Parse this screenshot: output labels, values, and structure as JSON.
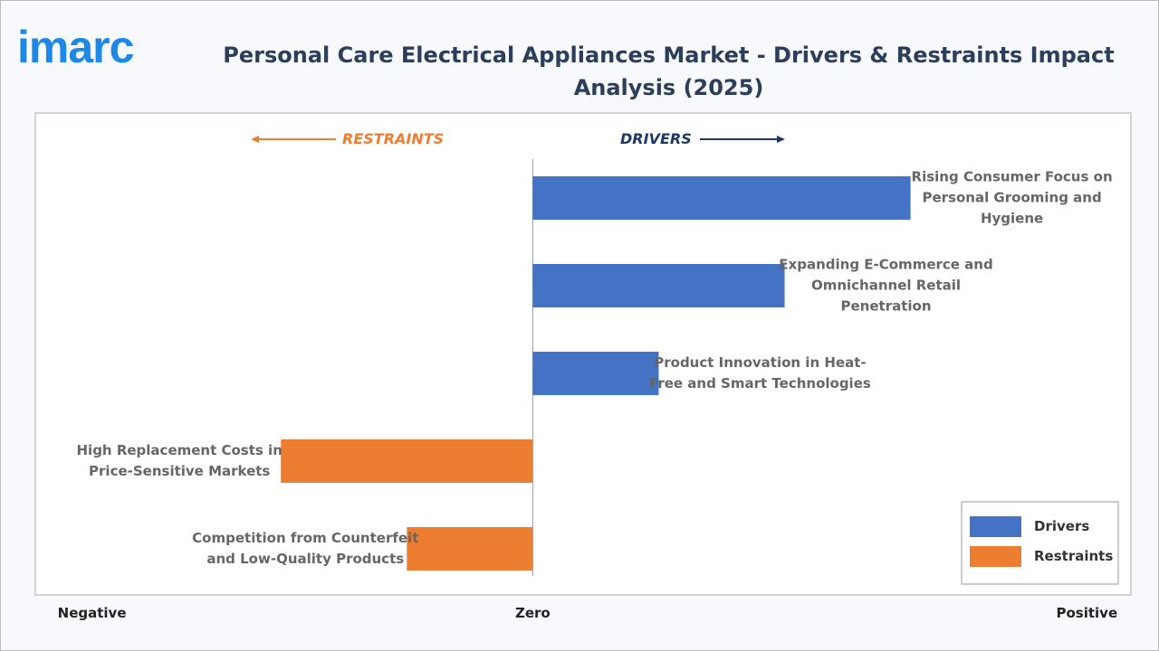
{
  "logo": "imarc",
  "chart_data": {
    "type": "diverging-bar",
    "title": "Personal Care Electrical Appliances Market - Drivers & Restraints Impact Analysis (2025)",
    "annotations": [
      "RESTRAINTS",
      "DRIVERS"
    ],
    "categories": [
      "Rising Consumer Focus on Personal Grooming and Hygiene",
      "Expanding E-Commerce and Omnichannel Retail Penetration",
      "Product Innovation in Heat-Free and Smart Technologies",
      "High Replacement Costs in Price-Sensitive Markets",
      "Competition from Counterfeit and Low-Quality Products"
    ],
    "series": [
      {
        "name": "Drivers",
        "color": "#4472c4",
        "values": [
          3,
          2,
          1,
          null,
          null
        ]
      },
      {
        "name": "Restraints",
        "color": "#ed7d31",
        "values": [
          null,
          null,
          null,
          -2,
          -1
        ]
      }
    ],
    "xlim": [
      -3.95,
      4.75
    ],
    "xticks": [
      {
        "value": -3.5,
        "label": "Negative"
      },
      {
        "value": 0,
        "label": "Zero"
      },
      {
        "value": 4.4,
        "label": "Positive"
      }
    ],
    "legend": "lower right"
  }
}
